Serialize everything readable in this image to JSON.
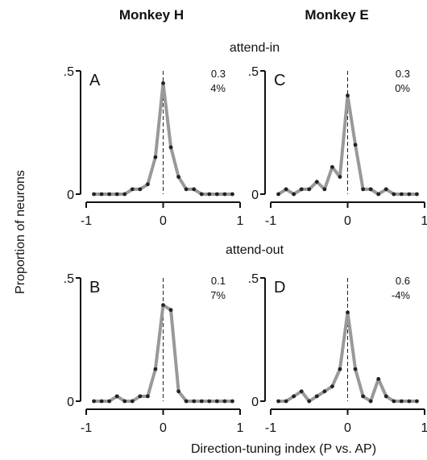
{
  "column_titles": [
    "Monkey H",
    "Monkey E"
  ],
  "row_titles": [
    "attend-in",
    "attend-out"
  ],
  "ylabel": "Proportion of neurons",
  "xlabel": "Direction-tuning index (P vs. AP)",
  "colors": {
    "line": "#999999",
    "marker": "#222222",
    "axis": "#111111",
    "zero_line": "#222222"
  },
  "chart_data": [
    {
      "type": "line",
      "panel": "A",
      "stats": [
        "0.3",
        "4%"
      ],
      "x_ticks": [
        "-1",
        "0",
        "1"
      ],
      "y_ticks": [
        ".5",
        "0"
      ],
      "xlim": [
        -1,
        1
      ],
      "ylim": [
        0,
        0.5
      ],
      "x": [
        -0.9,
        -0.8,
        -0.7,
        -0.6,
        -0.5,
        -0.4,
        -0.3,
        -0.2,
        -0.1,
        0,
        0.1,
        0.2,
        0.3,
        0.4,
        0.5,
        0.6,
        0.7,
        0.8,
        0.9
      ],
      "values": [
        0,
        0,
        0,
        0,
        0,
        0.02,
        0.02,
        0.04,
        0.15,
        0.45,
        0.19,
        0.07,
        0.02,
        0.02,
        0,
        0,
        0,
        0,
        0
      ],
      "zero_marker": "dashed"
    },
    {
      "type": "line",
      "panel": "C",
      "stats": [
        "0.3",
        "0%"
      ],
      "x_ticks": [
        "-1",
        "0",
        "1"
      ],
      "y_ticks": [
        ".5",
        "0"
      ],
      "xlim": [
        -1,
        1
      ],
      "ylim": [
        0,
        0.5
      ],
      "x": [
        -0.9,
        -0.8,
        -0.7,
        -0.6,
        -0.5,
        -0.4,
        -0.3,
        -0.2,
        -0.1,
        0,
        0.1,
        0.2,
        0.3,
        0.4,
        0.5,
        0.6,
        0.7,
        0.8,
        0.9
      ],
      "values": [
        0,
        0.02,
        0,
        0.02,
        0.02,
        0.05,
        0.02,
        0.11,
        0.07,
        0.4,
        0.2,
        0.02,
        0.02,
        0,
        0.02,
        0,
        0,
        0,
        0
      ],
      "zero_marker": "dashed"
    },
    {
      "type": "line",
      "panel": "B",
      "stats": [
        "0.1",
        "7%"
      ],
      "x_ticks": [
        "-1",
        "0",
        "1"
      ],
      "y_ticks": [
        ".5",
        "0"
      ],
      "xlim": [
        -1,
        1
      ],
      "ylim": [
        0,
        0.5
      ],
      "x": [
        -0.9,
        -0.8,
        -0.7,
        -0.6,
        -0.5,
        -0.4,
        -0.3,
        -0.2,
        -0.1,
        0,
        0.1,
        0.2,
        0.3,
        0.4,
        0.5,
        0.6,
        0.7,
        0.8,
        0.9
      ],
      "values": [
        0,
        0,
        0,
        0.02,
        0,
        0,
        0.02,
        0.02,
        0.13,
        0.39,
        0.37,
        0.04,
        0,
        0,
        0,
        0,
        0,
        0,
        0
      ],
      "zero_marker": "dashed"
    },
    {
      "type": "line",
      "panel": "D",
      "stats": [
        "0.6",
        "-4%"
      ],
      "x_ticks": [
        "-1",
        "0",
        "1"
      ],
      "y_ticks": [
        ".5",
        "0"
      ],
      "xlim": [
        -1,
        1
      ],
      "ylim": [
        0,
        0.5
      ],
      "x": [
        -0.9,
        -0.8,
        -0.7,
        -0.6,
        -0.5,
        -0.4,
        -0.3,
        -0.2,
        -0.1,
        0,
        0.1,
        0.2,
        0.3,
        0.4,
        0.5,
        0.6,
        0.7,
        0.8,
        0.9
      ],
      "values": [
        0,
        0,
        0.02,
        0.04,
        0,
        0.02,
        0.04,
        0.06,
        0.13,
        0.36,
        0.13,
        0.02,
        0,
        0.09,
        0.02,
        0,
        0,
        0,
        0
      ],
      "zero_marker": "dashed"
    }
  ]
}
